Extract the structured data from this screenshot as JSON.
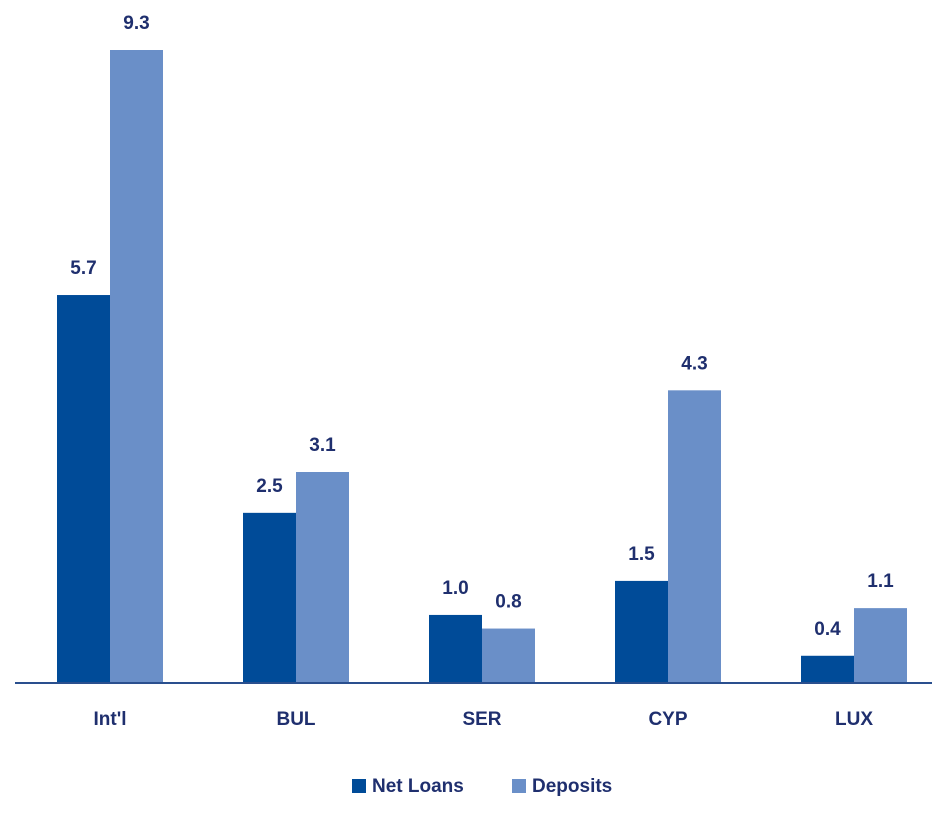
{
  "chart_data": {
    "type": "bar",
    "categories": [
      "Int'l",
      "BUL",
      "SER",
      "CYP",
      "LUX"
    ],
    "series": [
      {
        "name": "Net Loans",
        "color": "#004b98",
        "values": [
          5.7,
          2.5,
          1.0,
          1.5,
          0.4
        ],
        "value_labels": [
          "5.7",
          "2.5",
          "1.0",
          "1.5",
          "0.4"
        ]
      },
      {
        "name": "Deposits",
        "color": "#6a8fc8",
        "values": [
          9.3,
          3.1,
          0.8,
          4.3,
          1.1
        ],
        "value_labels": [
          "9.3",
          "3.1",
          "0.8",
          "4.3",
          "1.1"
        ]
      }
    ],
    "legend": "bottom"
  }
}
